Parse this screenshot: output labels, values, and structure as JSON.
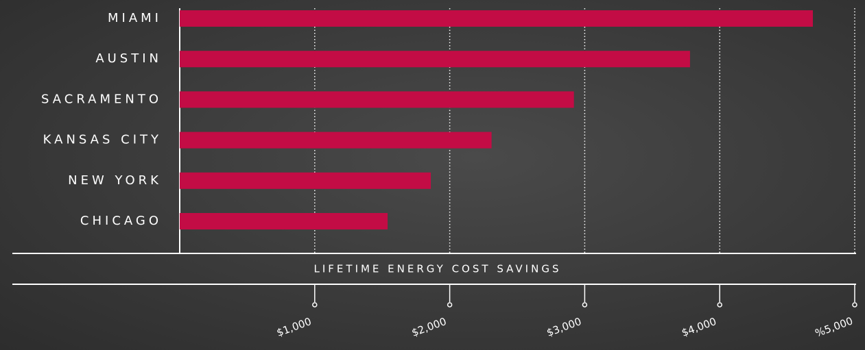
{
  "chart_data": {
    "type": "bar",
    "orientation": "horizontal",
    "categories": [
      "MIAMI",
      "AUSTIN",
      "SACRAMENTO",
      "KANSAS CITY",
      "NEW YORK",
      "CHICAGO"
    ],
    "values": [
      4690,
      3780,
      2920,
      2310,
      1860,
      1540
    ],
    "color": "#c30c45",
    "x_label": "LIFETIME ENERGY COST SAVINGS",
    "xlim": [
      0,
      5000
    ],
    "xticks": [
      {
        "value": 1000,
        "label": "$1,000"
      },
      {
        "value": 2000,
        "label": "$2,000"
      },
      {
        "value": 3000,
        "label": "$3,000"
      },
      {
        "value": 4000,
        "label": "$4,000"
      },
      {
        "value": 5000,
        "label": "%5,000"
      }
    ],
    "grid": true
  }
}
